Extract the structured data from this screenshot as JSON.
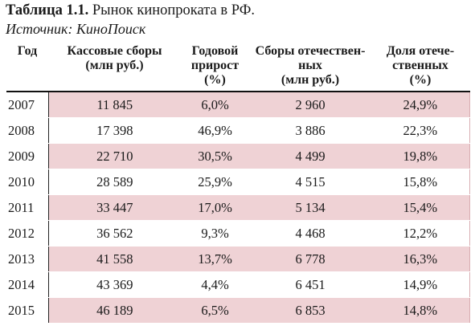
{
  "caption": {
    "number": "Таблица 1.1.",
    "title": "Рынок кинопроката в РФ."
  },
  "source": "Источник: КиноПоиск",
  "table": {
    "headers": [
      [
        "Год"
      ],
      [
        "Кассовые сборы",
        "(млн руб.)"
      ],
      [
        "Годовой",
        "прирост",
        "(%)"
      ],
      [
        "Сборы отечествен-",
        "ных",
        "(млн руб.)"
      ],
      [
        "Доля отече-",
        "ственных",
        "(%)"
      ]
    ],
    "rows": [
      [
        "2007",
        "11 845",
        "6,0%",
        "2 960",
        "24,9%"
      ],
      [
        "2008",
        "17 398",
        "46,9%",
        "3 886",
        "22,3%"
      ],
      [
        "2009",
        "22 710",
        "30,5%",
        "4 499",
        "19,8%"
      ],
      [
        "2010",
        "28 589",
        "25,9%",
        "4 515",
        "15,8%"
      ],
      [
        "2011",
        "33 447",
        "17,0%",
        "5 134",
        "15,4%"
      ],
      [
        "2012",
        "36 562",
        "9,3%",
        "4 468",
        "12,2%"
      ],
      [
        "2013",
        "41 558",
        "13,7%",
        "6 778",
        "16,3%"
      ],
      [
        "2014",
        "43 369",
        "4,4%",
        "6 451",
        "14,9%"
      ],
      [
        "2015",
        "46 189",
        "6,5%",
        "6 853",
        "14,8%"
      ]
    ]
  },
  "colors": {
    "row_shade": "#efd2d5",
    "text": "#1a1a1a"
  }
}
